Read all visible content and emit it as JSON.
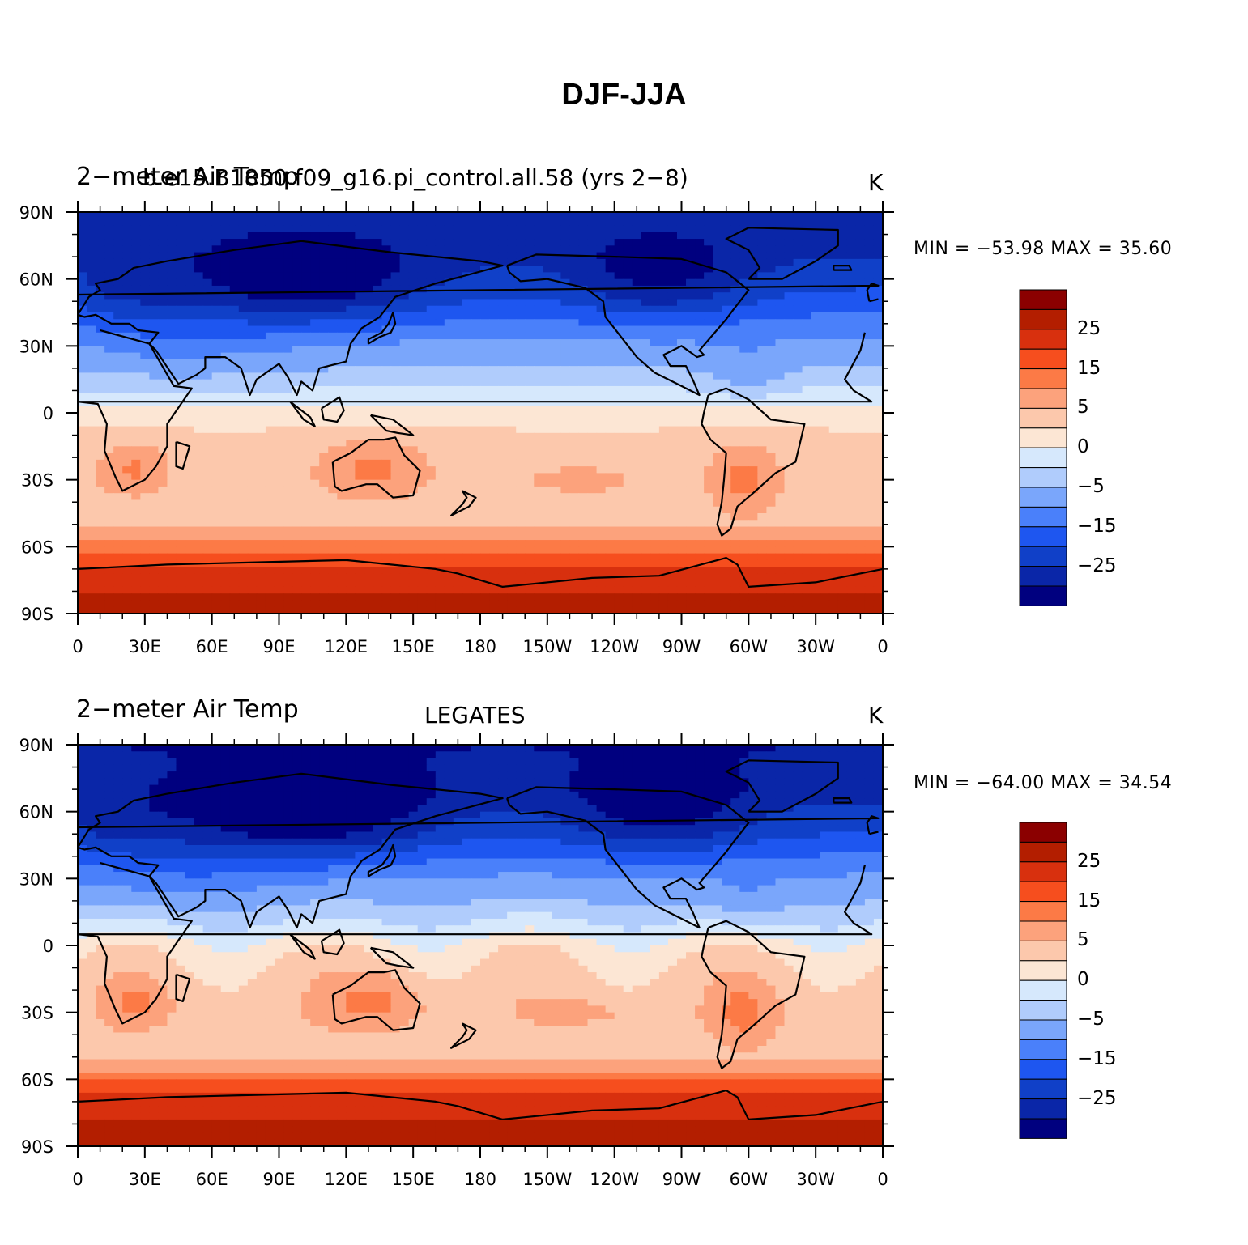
{
  "title": "DJF-JJA",
  "colors": {
    "levels": [
      "#00007f",
      "#0a26a8",
      "#1040c8",
      "#1e56f0",
      "#4a80fa",
      "#7aa6fb",
      "#b0ccfc",
      "#d6e8fc",
      "#fce6d4",
      "#fcc8ac",
      "#fca27c",
      "#fc7a46",
      "#f64e1e",
      "#d8300e",
      "#b31e00",
      "#8b0000"
    ],
    "land_outline": "#000000"
  },
  "colorbar": {
    "labels": [
      "25",
      "15",
      "5",
      "0",
      "−5",
      "−15",
      "−25"
    ]
  },
  "axes": {
    "lat_labels": [
      "90N",
      "60N",
      "30N",
      "0",
      "30S",
      "60S",
      "90S"
    ],
    "lon_labels": [
      "0",
      "30E",
      "60E",
      "90E",
      "120E",
      "150E",
      "180",
      "150W",
      "120W",
      "90W",
      "60W",
      "30W",
      "0"
    ]
  },
  "panels": [
    {
      "left_title": "2−meter Air Temp",
      "center_title": "b.e15.B1850.f09_g16.pi_control.all.58 (yrs 2−8)",
      "units": "K",
      "minmax": "MIN = −53.98  MAX =   35.60"
    },
    {
      "left_title": "2−meter Air Temp",
      "center_title": "LEGATES",
      "units": "K",
      "minmax": "MIN = −64.00  MAX =   34.54"
    }
  ],
  "chart_data": [
    {
      "type": "heatmap",
      "title": "DJF-JJA",
      "subtitle": "b.e15.B1850.f09_g16.pi_control.all.58 (yrs 2−8)",
      "variable": "2−meter Air Temp",
      "units": "K",
      "min": -53.98,
      "max": 35.6,
      "projection": "cylindrical equidistant, centered on 180",
      "lat_range": [
        -90,
        90
      ],
      "lon_range": [
        0,
        360
      ],
      "contour_levels": [
        -30,
        -25,
        -20,
        -15,
        -10,
        -5,
        -2,
        0,
        2,
        5,
        10,
        15,
        20,
        25,
        30
      ],
      "zonal_pattern": {
        "lat": [
          90,
          70,
          50,
          30,
          15,
          0,
          -15,
          -30,
          -50,
          -60,
          -70,
          -90
        ],
        "value": [
          -28,
          -25,
          -18,
          -8,
          -3,
          1,
          3,
          4,
          3,
          12,
          22,
          28
        ]
      }
    },
    {
      "type": "heatmap",
      "title": "DJF-JJA",
      "subtitle": "LEGATES",
      "variable": "2−meter Air Temp",
      "units": "K",
      "min": -64.0,
      "max": 34.54,
      "projection": "cylindrical equidistant, centered on 180",
      "lat_range": [
        -90,
        90
      ],
      "lon_range": [
        0,
        360
      ],
      "contour_levels": [
        -30,
        -25,
        -20,
        -15,
        -10,
        -5,
        -2,
        0,
        2,
        5,
        10,
        15,
        20,
        25,
        30
      ],
      "zonal_pattern": {
        "lat": [
          90,
          70,
          50,
          30,
          15,
          0,
          -15,
          -30,
          -50,
          -60,
          -70,
          -90
        ],
        "value": [
          -30,
          -27,
          -20,
          -9,
          -3,
          1,
          3,
          4,
          3,
          14,
          23,
          29
        ]
      }
    }
  ]
}
